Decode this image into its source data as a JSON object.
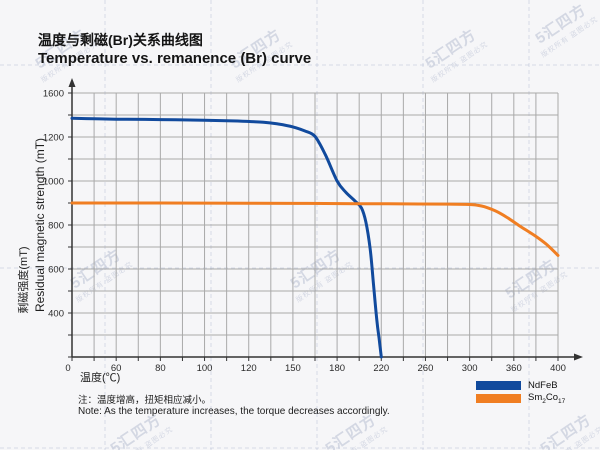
{
  "title": {
    "zh": "温度与剩磁(Br)关系曲线图",
    "en": "Temperature vs. remanence (Br) curve"
  },
  "axes": {
    "y_title_zh": "剩磁强度(mT)",
    "y_title_en": "Residual magnetic strength (mT)",
    "x_title": "温度(℃)"
  },
  "legend": {
    "ndfeb": "NdFeB",
    "sm_parts": [
      "Sm",
      "2",
      "Co",
      "17"
    ]
  },
  "note": {
    "zh": "注：温度增高，扭矩相应减小。",
    "en": "Note: As the temperature increases, the torque decreases accordingly."
  },
  "watermark": {
    "logo": "5汇四方",
    "sub": "版权所有 盗图必究"
  },
  "colors": {
    "ndfeb": "#114a9d",
    "sm2co17": "#f07e22",
    "grid": "#a9a9a9",
    "axis": "#333333"
  },
  "chart_data": {
    "type": "line",
    "title": "Temperature vs. remanence (Br) curve",
    "xlabel": "温度(℃)",
    "ylabel": "Residual magnetic strength (mT)",
    "x_tick_labels": [
      0,
      60,
      80,
      100,
      120,
      150,
      180,
      220,
      260,
      300,
      360,
      400
    ],
    "y_tick_labels": [
      1600,
      1200,
      1000,
      800,
      600,
      400
    ],
    "origin_label": "0",
    "xlim": [
      0,
      400
    ],
    "ylim": [
      0,
      1600
    ],
    "grid": true,
    "legend_position": "bottom-right",
    "note": "x and y scales are non-linear: tick labels are evenly spaced as printed",
    "series": [
      {
        "name": "NdFeB",
        "color": "#114a9d",
        "points": [
          [
            0,
            1370
          ],
          [
            30,
            1366
          ],
          [
            60,
            1362
          ],
          [
            80,
            1358
          ],
          [
            100,
            1352
          ],
          [
            115,
            1345
          ],
          [
            130,
            1334
          ],
          [
            140,
            1318
          ],
          [
            150,
            1292
          ],
          [
            158,
            1255
          ],
          [
            165,
            1205
          ],
          [
            172,
            1120
          ],
          [
            180,
            1000
          ],
          [
            188,
            948
          ],
          [
            196,
            910
          ],
          [
            202,
            878
          ],
          [
            206,
            815
          ],
          [
            210,
            690
          ],
          [
            213,
            530
          ],
          [
            216,
            330
          ],
          [
            218,
            170
          ],
          [
            220,
            0
          ]
        ]
      },
      {
        "name": "Sm2Co17",
        "color": "#f07e22",
        "points": [
          [
            0,
            900
          ],
          [
            40,
            900
          ],
          [
            80,
            900
          ],
          [
            120,
            899
          ],
          [
            160,
            898
          ],
          [
            200,
            897
          ],
          [
            240,
            896
          ],
          [
            280,
            895
          ],
          [
            300,
            893
          ],
          [
            310,
            890
          ],
          [
            320,
            883
          ],
          [
            335,
            864
          ],
          [
            350,
            836
          ],
          [
            365,
            797
          ],
          [
            380,
            748
          ],
          [
            390,
            710
          ],
          [
            400,
            662
          ]
        ]
      }
    ]
  }
}
